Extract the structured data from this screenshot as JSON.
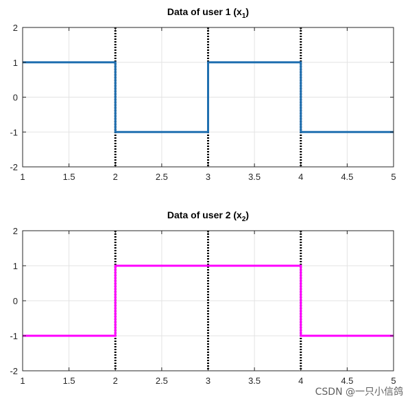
{
  "chart_data": [
    {
      "type": "line",
      "step": true,
      "title": "Data of user 1 (x",
      "title_subscript": "1",
      "title_close": ")",
      "xlim": [
        1,
        5
      ],
      "ylim": [
        -2,
        2
      ],
      "xticks": [
        "1",
        "1.5",
        "2",
        "2.5",
        "3",
        "3.5",
        "4",
        "4.5",
        "5"
      ],
      "yticks": [
        "2",
        "1",
        "0",
        "-1",
        "-2"
      ],
      "grid": true,
      "series": [
        {
          "color": "#1f6fb0",
          "x": [
            1,
            2,
            2,
            3,
            3,
            4,
            4,
            5
          ],
          "y": [
            1,
            1,
            -1,
            -1,
            1,
            1,
            -1,
            -1
          ]
        }
      ],
      "vlines": {
        "x": [
          2,
          3,
          4
        ],
        "style": "dotted",
        "color": "#000000"
      }
    },
    {
      "type": "line",
      "step": true,
      "title": "Data of user 2 (x",
      "title_subscript": "2",
      "title_close": ")",
      "xlim": [
        1,
        5
      ],
      "ylim": [
        -2,
        2
      ],
      "xticks": [
        "1",
        "1.5",
        "2",
        "2.5",
        "3",
        "3.5",
        "4",
        "4.5",
        "5"
      ],
      "yticks": [
        "2",
        "1",
        "0",
        "-1",
        "-2"
      ],
      "grid": true,
      "series": [
        {
          "color": "#ff00ff",
          "x": [
            1,
            2,
            2,
            4,
            4,
            5
          ],
          "y": [
            -1,
            -1,
            1,
            1,
            -1,
            -1
          ]
        }
      ],
      "vlines": {
        "x": [
          2,
          3,
          4
        ],
        "style": "dotted",
        "color": "#000000"
      }
    }
  ],
  "watermark": "CSDN @一只小信鸽"
}
